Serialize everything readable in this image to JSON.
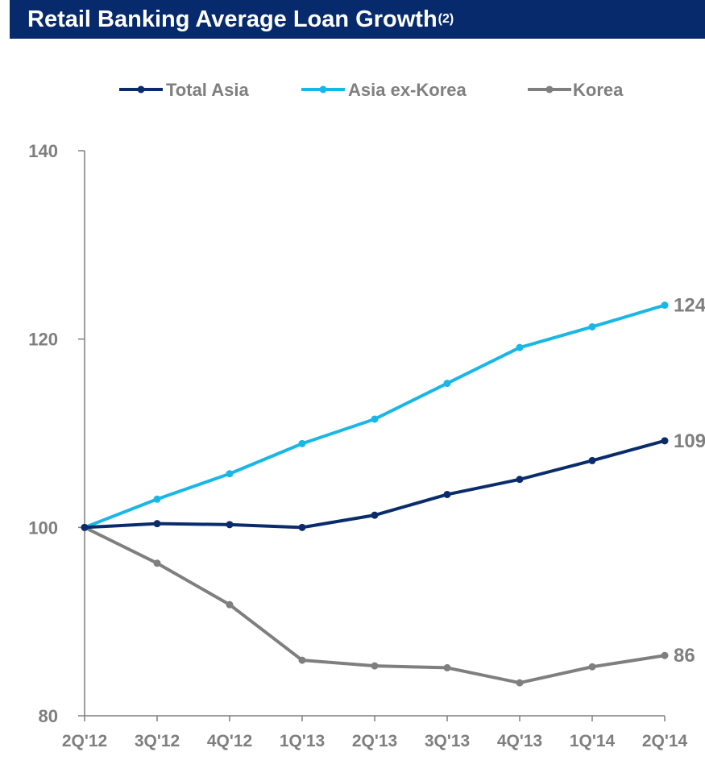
{
  "header": {
    "title": "Retail Banking Average Loan Growth",
    "footnote": "(2)"
  },
  "chart_data": {
    "type": "line",
    "title": "Retail Banking Average Loan Growth",
    "categories": [
      "2Q'12",
      "3Q'12",
      "4Q'12",
      "1Q'13",
      "2Q'13",
      "3Q'13",
      "4Q'13",
      "1Q'14",
      "2Q'14"
    ],
    "ylim": [
      80,
      140
    ],
    "yticks": [
      "80",
      "100",
      "120",
      "140"
    ],
    "legend_position": "top",
    "grid": false,
    "series": [
      {
        "name": "Total Asia",
        "color": "#0b2c6b",
        "values": [
          100,
          100.4,
          100.3,
          100.0,
          101.3,
          103.5,
          105.1,
          107.1,
          109.2
        ],
        "end_label": "109"
      },
      {
        "name": "Asia ex-Korea",
        "color": "#19b7e6",
        "values": [
          100,
          103.0,
          105.7,
          108.9,
          111.5,
          115.3,
          119.1,
          121.3,
          123.6
        ],
        "end_label": "124"
      },
      {
        "name": "Korea",
        "color": "#7f7f7f",
        "values": [
          100,
          96.2,
          91.8,
          85.9,
          85.3,
          85.1,
          83.5,
          85.2,
          86.4
        ],
        "end_label": "86"
      }
    ]
  }
}
